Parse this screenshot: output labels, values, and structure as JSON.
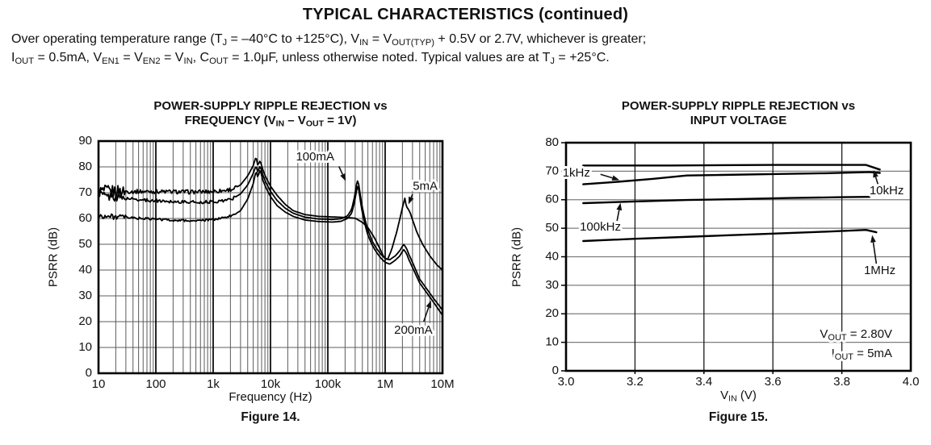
{
  "page": {
    "title": "TYPICAL CHARACTERISTICS (continued)",
    "conditions_line1": [
      "Over operating temperature range (T",
      {
        "sub": "J"
      },
      " = –40°C to +125°C), V",
      {
        "sub": "IN"
      },
      " = V",
      {
        "sub": "OUT(TYP)"
      },
      " + 0.5V or 2.7V, whichever is greater;"
    ],
    "conditions_line2": [
      "I",
      {
        "sub": "OUT"
      },
      " = 0.5mA, V",
      {
        "sub": "EN1"
      },
      " = V",
      {
        "sub": "EN2"
      },
      " = V",
      {
        "sub": "IN"
      },
      ", C",
      {
        "sub": "OUT"
      },
      " = 1.0μF, unless otherwise noted. Typical values are at T",
      {
        "sub": "J"
      },
      " = +25°C."
    ]
  },
  "chart_data": [
    {
      "type": "line",
      "title_line1": "POWER-SUPPLY RIPPLE REJECTION vs",
      "title_line2": [
        "FREQUENCY (V",
        {
          "sub": "IN"
        },
        " – V",
        {
          "sub": "OUT"
        },
        " = 1V)"
      ],
      "xlabel": "Frequency (Hz)",
      "ylabel": "PSRR (dB)",
      "caption": "Figure 14.",
      "x_scale": "log",
      "xlim": [
        10,
        10000000
      ],
      "ylim": [
        0,
        90
      ],
      "log_minor_grid": true,
      "x_ticks": [
        {
          "v": 10,
          "label": "10"
        },
        {
          "v": 100,
          "label": "100"
        },
        {
          "v": 1000,
          "label": "1k"
        },
        {
          "v": 10000,
          "label": "10k"
        },
        {
          "v": 100000,
          "label": "100k"
        },
        {
          "v": 1000000,
          "label": "1M"
        },
        {
          "v": 10000000,
          "label": "10M"
        }
      ],
      "y_ticks": [
        {
          "v": 0,
          "label": "0"
        },
        {
          "v": 10,
          "label": "10"
        },
        {
          "v": 20,
          "label": "20"
        },
        {
          "v": 30,
          "label": "30"
        },
        {
          "v": 40,
          "label": "40"
        },
        {
          "v": 50,
          "label": "50"
        },
        {
          "v": 60,
          "label": "60"
        },
        {
          "v": 70,
          "label": "70"
        },
        {
          "v": 80,
          "label": "80"
        },
        {
          "v": 90,
          "label": "90"
        }
      ],
      "series": [
        {
          "name": "5mA",
          "noise": {
            "amp": 0.8,
            "max_hz": 2600,
            "boost": 3.0,
            "boost_below_hz": 30
          },
          "points": [
            [
              10,
              70.5
            ],
            [
              20,
              70.6
            ],
            [
              40,
              70.4
            ],
            [
              80,
              70.5
            ],
            [
              150,
              70.4
            ],
            [
              300,
              70.3
            ],
            [
              600,
              70.3
            ],
            [
              1000,
              70.5
            ],
            [
              1500,
              70.8
            ],
            [
              2200,
              71.4
            ],
            [
              3000,
              73
            ],
            [
              4000,
              76.5
            ],
            [
              5000,
              80.5
            ],
            [
              5600,
              84
            ],
            [
              6000,
              80.5
            ],
            [
              6600,
              82.5
            ],
            [
              7300,
              79
            ],
            [
              8500,
              75.5
            ],
            [
              10000,
              72.5
            ],
            [
              13000,
              69
            ],
            [
              18000,
              65.5
            ],
            [
              25000,
              63
            ],
            [
              40000,
              61.5
            ],
            [
              70000,
              60.8
            ],
            [
              120000,
              60.6
            ],
            [
              200000,
              60.4
            ],
            [
              300000,
              60.1
            ],
            [
              400000,
              58.5
            ],
            [
              500000,
              56.5
            ],
            [
              650000,
              52.5
            ],
            [
              800000,
              48.5
            ],
            [
              950000,
              45
            ],
            [
              1100000,
              44
            ],
            [
              1300000,
              48
            ],
            [
              1600000,
              55
            ],
            [
              1900000,
              62
            ],
            [
              2200000,
              68
            ],
            [
              2350000,
              64.5
            ],
            [
              2500000,
              63.8
            ],
            [
              2700000,
              62.5
            ],
            [
              3000000,
              59.5
            ],
            [
              3600000,
              54.5
            ],
            [
              4500000,
              50
            ],
            [
              6000000,
              45.5
            ],
            [
              8000000,
              42
            ],
            [
              10000000,
              40
            ]
          ]
        },
        {
          "name": "100mA",
          "noise": {
            "amp": 0.6,
            "max_hz": 2600,
            "boost": 2.6,
            "boost_below_hz": 30
          },
          "points": [
            [
              10,
              70
            ],
            [
              14,
              68.5
            ],
            [
              20,
              68.3
            ],
            [
              30,
              67.8
            ],
            [
              50,
              67.3
            ],
            [
              80,
              67
            ],
            [
              150,
              66.7
            ],
            [
              300,
              66.4
            ],
            [
              600,
              66.3
            ],
            [
              1000,
              66.5
            ],
            [
              1500,
              66.9
            ],
            [
              2200,
              67.8
            ],
            [
              3000,
              69.5
            ],
            [
              4000,
              73
            ],
            [
              5000,
              77.5
            ],
            [
              5600,
              80.5
            ],
            [
              6000,
              78
            ],
            [
              6600,
              80.5
            ],
            [
              7300,
              77
            ],
            [
              8500,
              73.5
            ],
            [
              10000,
              70.5
            ],
            [
              13000,
              67
            ],
            [
              18000,
              64
            ],
            [
              25000,
              62
            ],
            [
              40000,
              60.5
            ],
            [
              70000,
              59.8
            ],
            [
              120000,
              59.6
            ],
            [
              170000,
              59.9
            ],
            [
              220000,
              61
            ],
            [
              260000,
              63.5
            ],
            [
              290000,
              68
            ],
            [
              315000,
              73
            ],
            [
              335000,
              75
            ],
            [
              355000,
              71.5
            ],
            [
              390000,
              65.5
            ],
            [
              440000,
              60
            ],
            [
              500000,
              55.5
            ],
            [
              600000,
              51
            ],
            [
              700000,
              48.5
            ],
            [
              850000,
              46
            ],
            [
              1000000,
              44.5
            ],
            [
              1200000,
              44
            ],
            [
              1500000,
              45.5
            ],
            [
              1800000,
              47.5
            ],
            [
              2100000,
              50
            ],
            [
              2350000,
              48.5
            ],
            [
              2600000,
              46
            ],
            [
              3000000,
              43
            ],
            [
              4000000,
              36.5
            ],
            [
              5000000,
              33.5
            ],
            [
              7000000,
              29
            ],
            [
              10000000,
              24.5
            ]
          ]
        },
        {
          "name": "200mA",
          "noise": {
            "amp": 0.45,
            "max_hz": 2600,
            "boost": 2.2,
            "boost_below_hz": 30
          },
          "points": [
            [
              10,
              61
            ],
            [
              20,
              60.6
            ],
            [
              40,
              60.2
            ],
            [
              80,
              59.8
            ],
            [
              150,
              59.5
            ],
            [
              300,
              59.2
            ],
            [
              600,
              59.1
            ],
            [
              1000,
              59.6
            ],
            [
              1500,
              60.2
            ],
            [
              2200,
              61.2
            ],
            [
              3000,
              63
            ],
            [
              4000,
              67.5
            ],
            [
              5000,
              73.5
            ],
            [
              5600,
              78.5
            ],
            [
              6000,
              76
            ],
            [
              6600,
              79
            ],
            [
              7300,
              75
            ],
            [
              8500,
              71.5
            ],
            [
              10000,
              68.5
            ],
            [
              13000,
              65
            ],
            [
              18000,
              62.5
            ],
            [
              25000,
              60.8
            ],
            [
              40000,
              59.4
            ],
            [
              70000,
              58.8
            ],
            [
              120000,
              58.6
            ],
            [
              170000,
              58.9
            ],
            [
              220000,
              60
            ],
            [
              260000,
              62
            ],
            [
              290000,
              66
            ],
            [
              315000,
              70.5
            ],
            [
              335000,
              73
            ],
            [
              355000,
              69.5
            ],
            [
              390000,
              63.5
            ],
            [
              440000,
              58
            ],
            [
              500000,
              53.5
            ],
            [
              600000,
              49.5
            ],
            [
              700000,
              47
            ],
            [
              850000,
              44.5
            ],
            [
              1000000,
              43
            ],
            [
              1200000,
              42.3
            ],
            [
              1500000,
              43.8
            ],
            [
              1800000,
              45.5
            ],
            [
              2100000,
              48
            ],
            [
              2350000,
              46.5
            ],
            [
              2600000,
              44
            ],
            [
              3000000,
              41
            ],
            [
              4000000,
              35
            ],
            [
              5000000,
              32
            ],
            [
              7000000,
              27.5
            ],
            [
              10000000,
              22.5
            ]
          ]
        }
      ],
      "annotations": [
        {
          "text": [
            "100mA"
          ],
          "x": 60000,
          "y": 83.8,
          "anchor": "middle",
          "arrow": {
            "x1": 156000,
            "y1": 80.2,
            "x2": 205000,
            "y2": 74.5
          }
        },
        {
          "text": [
            "5mA"
          ],
          "x": 5000000,
          "y": 72.3,
          "anchor": "middle",
          "arrow": {
            "x1": 3000000,
            "y1": 69.4,
            "x2": 2550000,
            "y2": 65.5
          }
        },
        {
          "text": [
            "200mA"
          ],
          "x": 3100000,
          "y": 16.5,
          "anchor": "middle",
          "arrow": {
            "x1": 4700000,
            "y1": 20,
            "x2": 6300000,
            "y2": 28.2
          }
        }
      ]
    },
    {
      "type": "line",
      "title_line1": "POWER-SUPPLY RIPPLE REJECTION vs",
      "title_line2": "INPUT VOLTAGE",
      "xlabel": [
        "V",
        {
          "sub": "IN"
        },
        " (V)"
      ],
      "ylabel": "PSRR (dB)",
      "caption": "Figure 15.",
      "x_scale": "linear",
      "xlim": [
        3.0,
        4.0
      ],
      "ylim": [
        0,
        80
      ],
      "log_minor_grid": false,
      "x_ticks": [
        {
          "v": 3.0,
          "label": "3.0"
        },
        {
          "v": 3.2,
          "label": "3.2"
        },
        {
          "v": 3.4,
          "label": "3.4"
        },
        {
          "v": 3.6,
          "label": "3.6"
        },
        {
          "v": 3.8,
          "label": "3.8"
        },
        {
          "v": 4.0,
          "label": "4.0"
        }
      ],
      "y_ticks": [
        {
          "v": 0,
          "label": "0"
        },
        {
          "v": 10,
          "label": "10"
        },
        {
          "v": 20,
          "label": "20"
        },
        {
          "v": 30,
          "label": "30"
        },
        {
          "v": 40,
          "label": "40"
        },
        {
          "v": 50,
          "label": "50"
        },
        {
          "v": 60,
          "label": "60"
        },
        {
          "v": 70,
          "label": "70"
        },
        {
          "v": 80,
          "label": "80"
        }
      ],
      "series": [
        {
          "name": "10kHz",
          "points": [
            [
              3.05,
              72
            ],
            [
              3.3,
              72
            ],
            [
              3.6,
              72.2
            ],
            [
              3.8,
              72.2
            ],
            [
              3.87,
              72.2
            ],
            [
              3.91,
              70.6
            ]
          ]
        },
        {
          "name": "1kHz",
          "points": [
            [
              3.05,
              65.4
            ],
            [
              3.15,
              66.3
            ],
            [
              3.25,
              67.3
            ],
            [
              3.35,
              68.5
            ],
            [
              3.45,
              68.7
            ],
            [
              3.6,
              69
            ],
            [
              3.75,
              69.3
            ],
            [
              3.88,
              69.7
            ],
            [
              3.91,
              69.4
            ]
          ]
        },
        {
          "name": "100kHz",
          "points": [
            [
              3.05,
              58.8
            ],
            [
              3.2,
              59.4
            ],
            [
              3.35,
              59.9
            ],
            [
              3.5,
              60.2
            ],
            [
              3.65,
              60.6
            ],
            [
              3.8,
              60.9
            ],
            [
              3.88,
              61
            ]
          ]
        },
        {
          "name": "1MHz",
          "points": [
            [
              3.05,
              45.5
            ],
            [
              3.2,
              46.3
            ],
            [
              3.4,
              47.2
            ],
            [
              3.6,
              48.1
            ],
            [
              3.75,
              48.8
            ],
            [
              3.87,
              49.4
            ],
            [
              3.9,
              48.6
            ]
          ]
        }
      ],
      "annotations": [
        {
          "text": [
            "1kHz"
          ],
          "x": 2.99,
          "y": 69.3,
          "anchor": "start",
          "arrow": {
            "x1": 3.1,
            "y1": 68.9,
            "x2": 3.155,
            "y2": 66.9
          }
        },
        {
          "text": [
            "10kHz"
          ],
          "x": 3.93,
          "y": 63,
          "anchor": "middle",
          "arrow": {
            "x1": 3.905,
            "y1": 65.3,
            "x2": 3.892,
            "y2": 70.4
          }
        },
        {
          "text": [
            "100kHz"
          ],
          "x": 3.04,
          "y": 50.3,
          "anchor": "start",
          "arrow": {
            "x1": 3.148,
            "y1": 52.6,
            "x2": 3.158,
            "y2": 58.9
          }
        },
        {
          "text": [
            "1MHz"
          ],
          "x": 3.91,
          "y": 35,
          "anchor": "middle",
          "arrow": {
            "x1": 3.9,
            "y1": 37.6,
            "x2": 3.888,
            "y2": 47.6
          }
        },
        {
          "text": [
            "V",
            {
              "sub": "OUT"
            },
            " = 2.80V"
          ],
          "x": 3.946,
          "y": 12.7,
          "anchor": "end"
        },
        {
          "text": [
            "I",
            {
              "sub": "OUT"
            },
            " = 5mA"
          ],
          "x": 3.946,
          "y": 5.9,
          "anchor": "end"
        }
      ]
    }
  ]
}
